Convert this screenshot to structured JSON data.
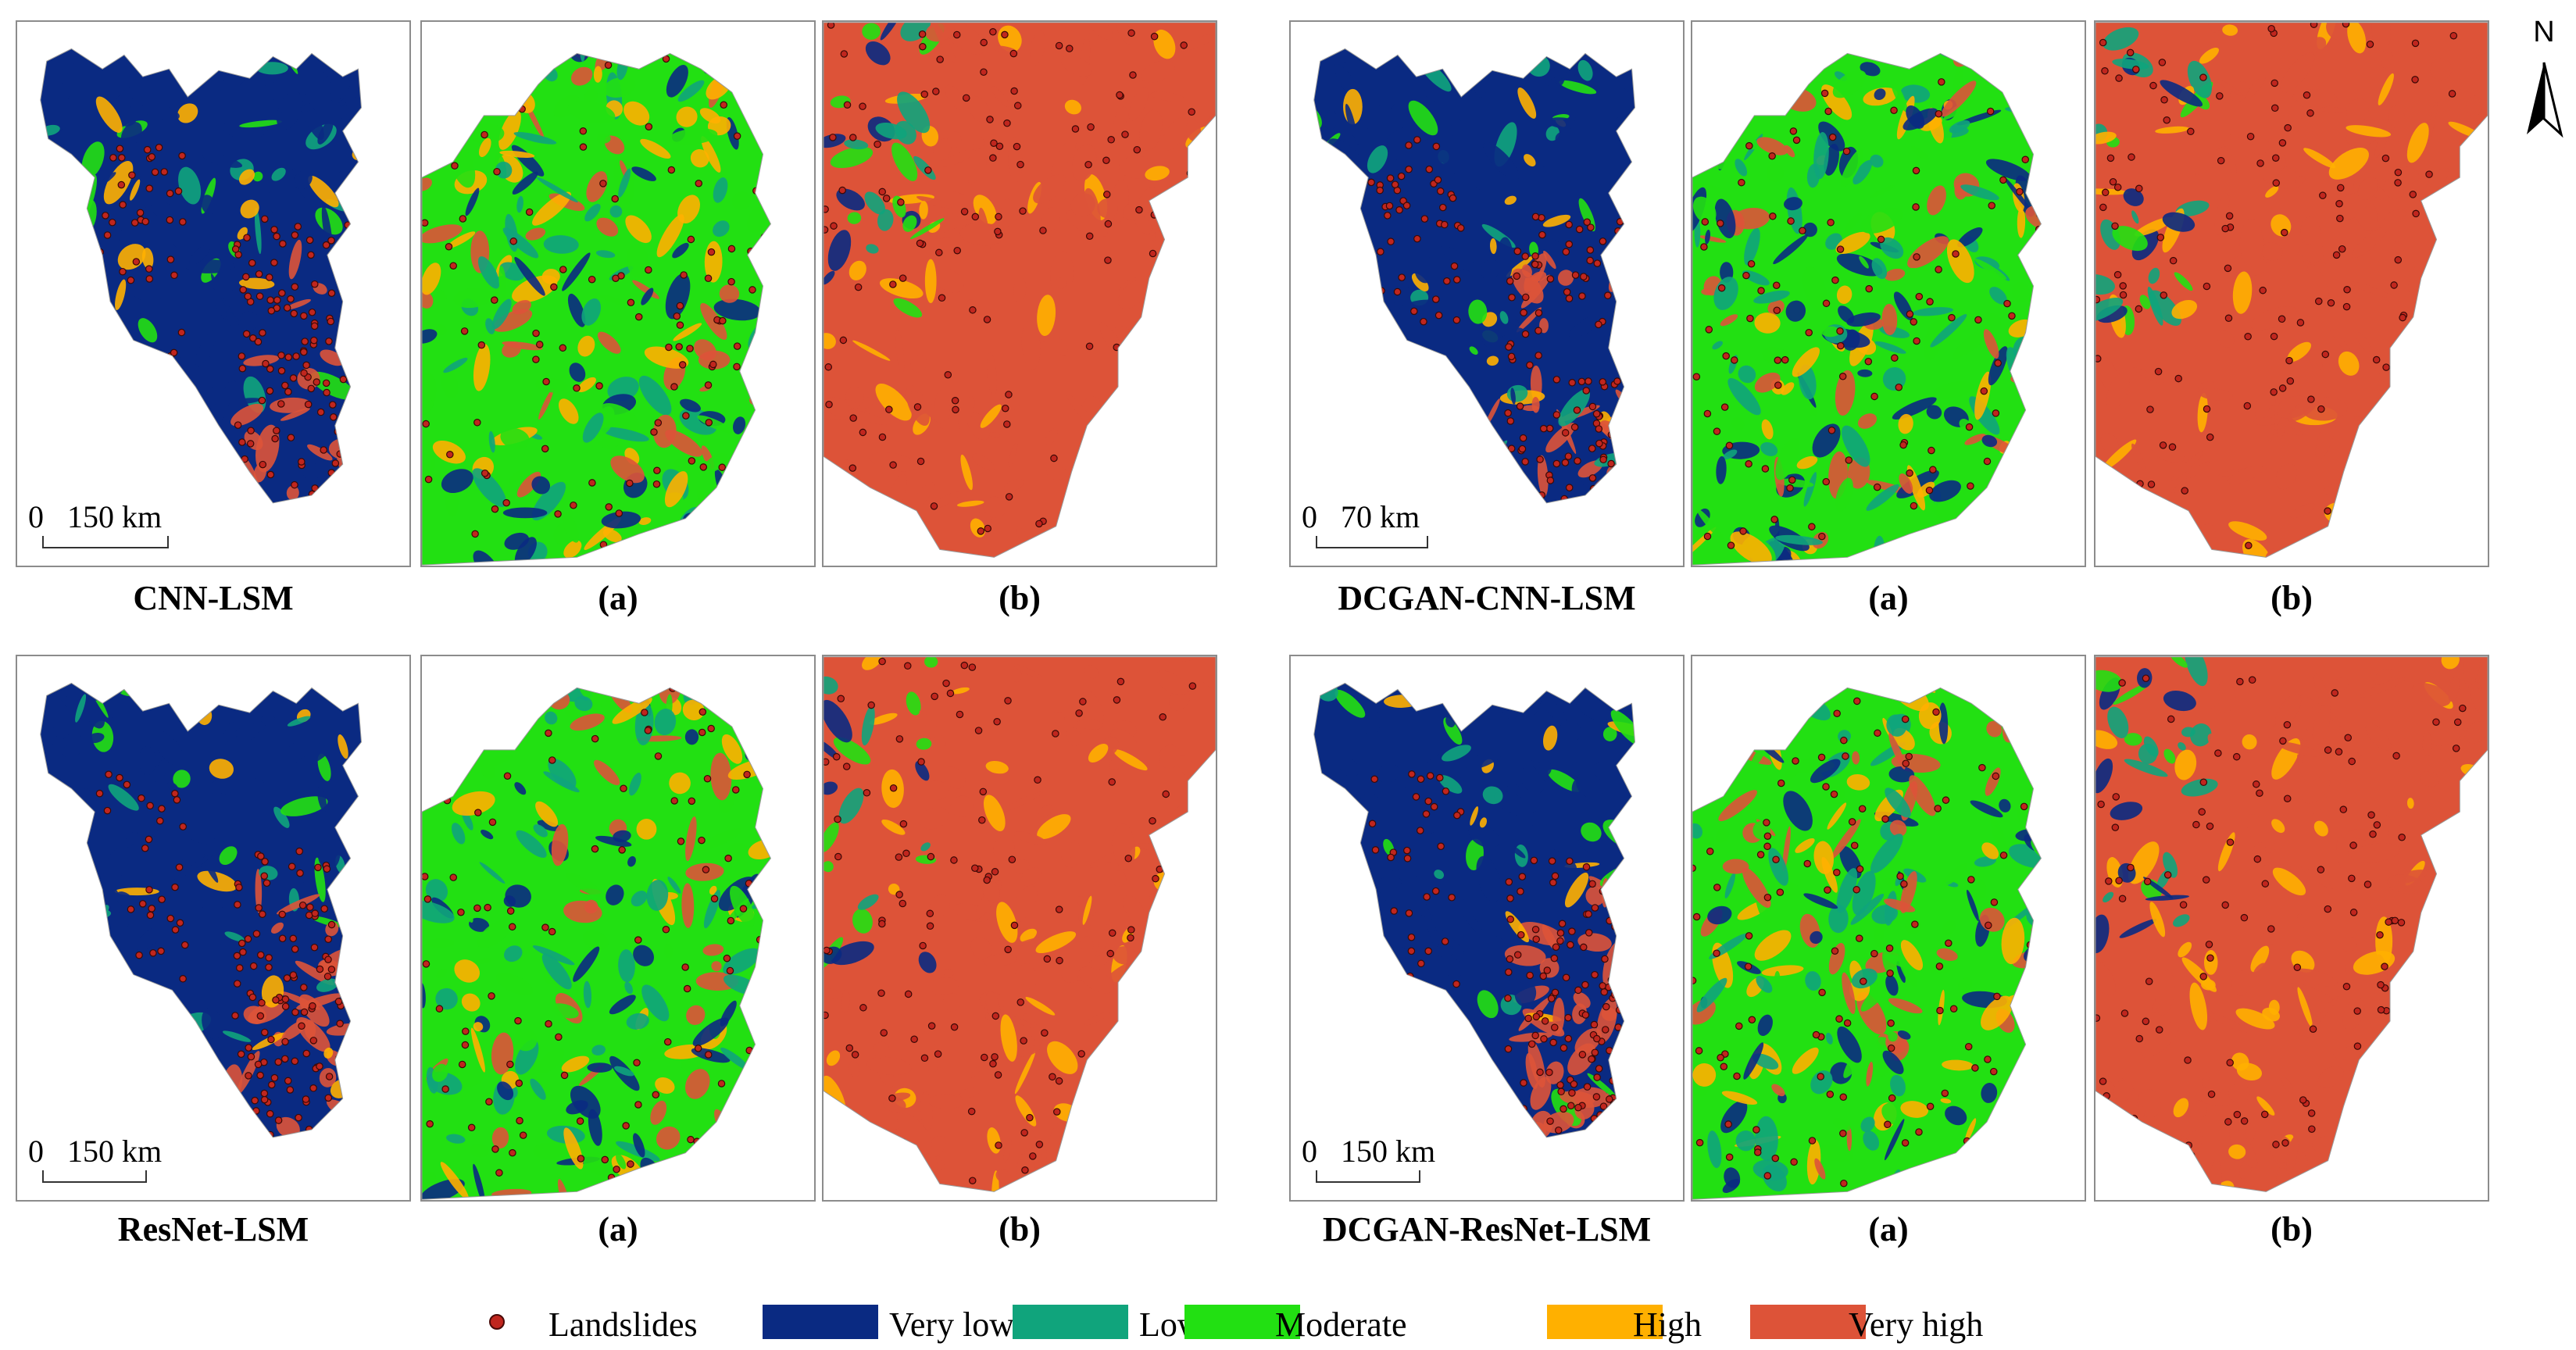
{
  "north_arrow": {
    "label": "N"
  },
  "blocks": [
    {
      "model": "CNN-LSM",
      "scale_label": "0   150 km",
      "panel_a": "(a)",
      "panel_b": "(b)"
    },
    {
      "model": "DCGAN-CNN-LSM",
      "scale_label": "0   70 km",
      "panel_a": "(a)",
      "panel_b": "(b)"
    },
    {
      "model": "ResNet-LSM",
      "scale_label": "0   150 km",
      "panel_a": "(a)",
      "panel_b": "(b)"
    },
    {
      "model": "DCGAN-ResNet-LSM",
      "scale_label": "0   150 km",
      "panel_a": "(a)",
      "panel_b": "(b)"
    }
  ],
  "legend": {
    "landslides": "Landslides",
    "very_low": "Very low",
    "low": "Low",
    "moderate": "Moderate",
    "high": "High",
    "very_high": "Very high"
  },
  "colors": {
    "landslide": "#c0261e",
    "very_low": "#0a2a82",
    "low": "#10a47c",
    "moderate": "#22e012",
    "high": "#ffb000",
    "very_high": "#dd5338"
  }
}
